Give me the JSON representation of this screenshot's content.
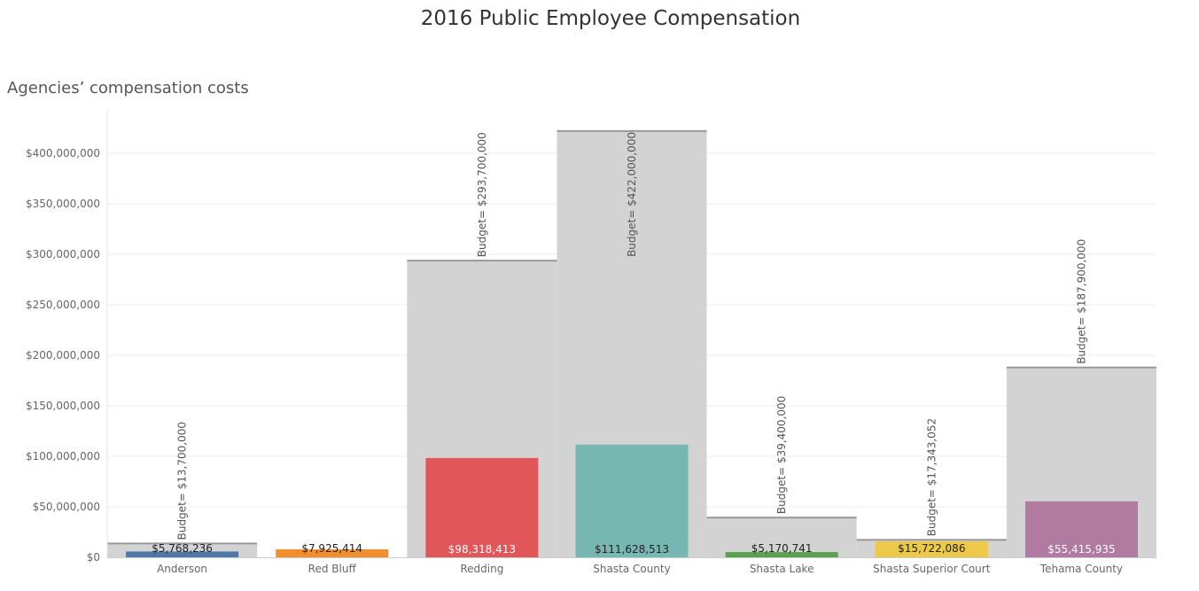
{
  "chart_data": {
    "type": "bar",
    "title": "2016 Public Employee Compensation",
    "subtitle": "Agencies’ compensation costs",
    "xlabel": "",
    "ylabel": "",
    "ylim": [
      0,
      440000000
    ],
    "yticks": [
      0,
      50000000,
      100000000,
      150000000,
      200000000,
      250000000,
      300000000,
      350000000,
      400000000
    ],
    "ytick_labels": [
      "$0",
      "$50,000,000",
      "$100,000,000",
      "$150,000,000",
      "$200,000,000",
      "$250,000,000",
      "$300,000,000",
      "$350,000,000",
      "$400,000,000"
    ],
    "grid": true,
    "categories": [
      "Anderson",
      "Red Bluff",
      "Redding",
      "Shasta County",
      "Shasta Lake",
      "Shasta Superior Court",
      "Tehama County"
    ],
    "series": [
      {
        "values": [
          5768236,
          7925414,
          98318413,
          111628513,
          5170741,
          15722086,
          55415935
        ],
        "value_labels": [
          "$5,768,236",
          "$7,925,414",
          "$98,318,413",
          "$111,628,513",
          "$5,170,741",
          "$15,722,086",
          "$55,415,935"
        ]
      }
    ],
    "budget": {
      "values": [
        13700000,
        null,
        293700000,
        422000000,
        39400000,
        17343052,
        187900000
      ],
      "labels": [
        "Budget= $13,700,000",
        "",
        "Budget= $293,700,000",
        "Budget= $422,000,000",
        "Budget= $39,400,000",
        "Budget= $17,343,052",
        "Budget= $187,900,000"
      ]
    },
    "colors": [
      "#4e79a7",
      "#f28e2b",
      "#e15759",
      "#76b7b2",
      "#59a14f",
      "#edc948",
      "#b07aa1"
    ],
    "background_color": "#d3d3d3"
  }
}
